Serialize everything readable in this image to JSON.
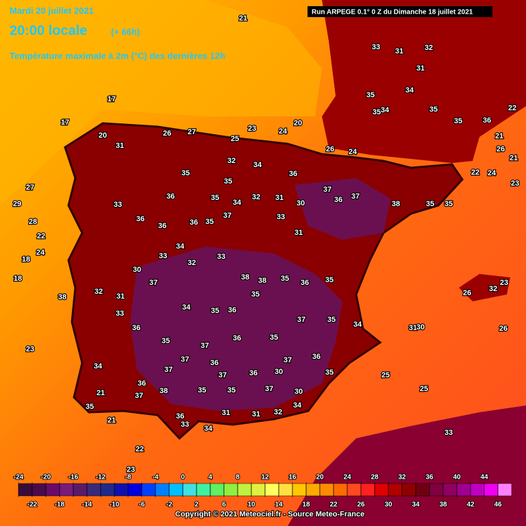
{
  "header": {
    "date": "Mardi 20 juillet 2021",
    "time": "20:00 locale",
    "lead": "(+ 66h)",
    "subtitle": "Température maximale à 2m (°C) des dernières 12h",
    "run": "Run ARPEGE 0.1° 0 Z du Dimanche 18 juillet 2021"
  },
  "map": {
    "labels": [
      21,
      17,
      17,
      20,
      31,
      26,
      27,
      25,
      23,
      24,
      20,
      26,
      24,
      32,
      34,
      36,
      35,
      35,
      36,
      35,
      34,
      32,
      31,
      30,
      37,
      36,
      37,
      38,
      35,
      35,
      33,
      36,
      36,
      36,
      35,
      37,
      33,
      31,
      34,
      33,
      32,
      33,
      38,
      38,
      35,
      36,
      35,
      37,
      30,
      31,
      32,
      35,
      33,
      34,
      35,
      36,
      37,
      35,
      34,
      36,
      35,
      37,
      36,
      35,
      37,
      36,
      37,
      36,
      34,
      37,
      37,
      36,
      30,
      35,
      25,
      36,
      38,
      35,
      35,
      37,
      30,
      25,
      37,
      35,
      21,
      36,
      31,
      31,
      32,
      34,
      33,
      34,
      33,
      35,
      33,
      31,
      32,
      31,
      34,
      35,
      34,
      35,
      35,
      36,
      22,
      21,
      21,
      23,
      24,
      22,
      26,
      32,
      23,
      26,
      26,
      31,
      30,
      29,
      27,
      28,
      22,
      24,
      18,
      18,
      23,
      38,
      21,
      22,
      23
    ]
  },
  "legend": {
    "ticks": [
      -24,
      -22,
      -20,
      -18,
      -16,
      -14,
      -12,
      -10,
      -8,
      -6,
      -4,
      -2,
      0,
      2,
      4,
      6,
      8,
      10,
      12,
      14,
      16,
      18,
      20,
      22,
      24,
      26,
      28,
      30,
      32,
      34,
      36,
      38,
      40,
      42,
      44,
      46
    ],
    "colors": [
      "#3a0a3a",
      "#4a0a4a",
      "#6a0a6a",
      "#7a1a7a",
      "#5a1a6a",
      "#3a2a7a",
      "#202a8a",
      "#1010b0",
      "#0000e0",
      "#0040ff",
      "#0080ff",
      "#00c0ff",
      "#40e0e0",
      "#40f0a0",
      "#60f060",
      "#90f040",
      "#c0f040",
      "#e0f040",
      "#ffff60",
      "#ffe040",
      "#ffc800",
      "#ffa800",
      "#ff8c00",
      "#ff6a00",
      "#ff4a20",
      "#ff2020",
      "#e00000",
      "#b00000",
      "#900000",
      "#700010",
      "#800040",
      "#900060",
      "#a00090",
      "#c000c0",
      "#f000f0",
      "#ff80ff"
    ]
  },
  "footer": {
    "copyright": "Copyright © 2021 Meteociel.fr - Source Meteo-France"
  }
}
